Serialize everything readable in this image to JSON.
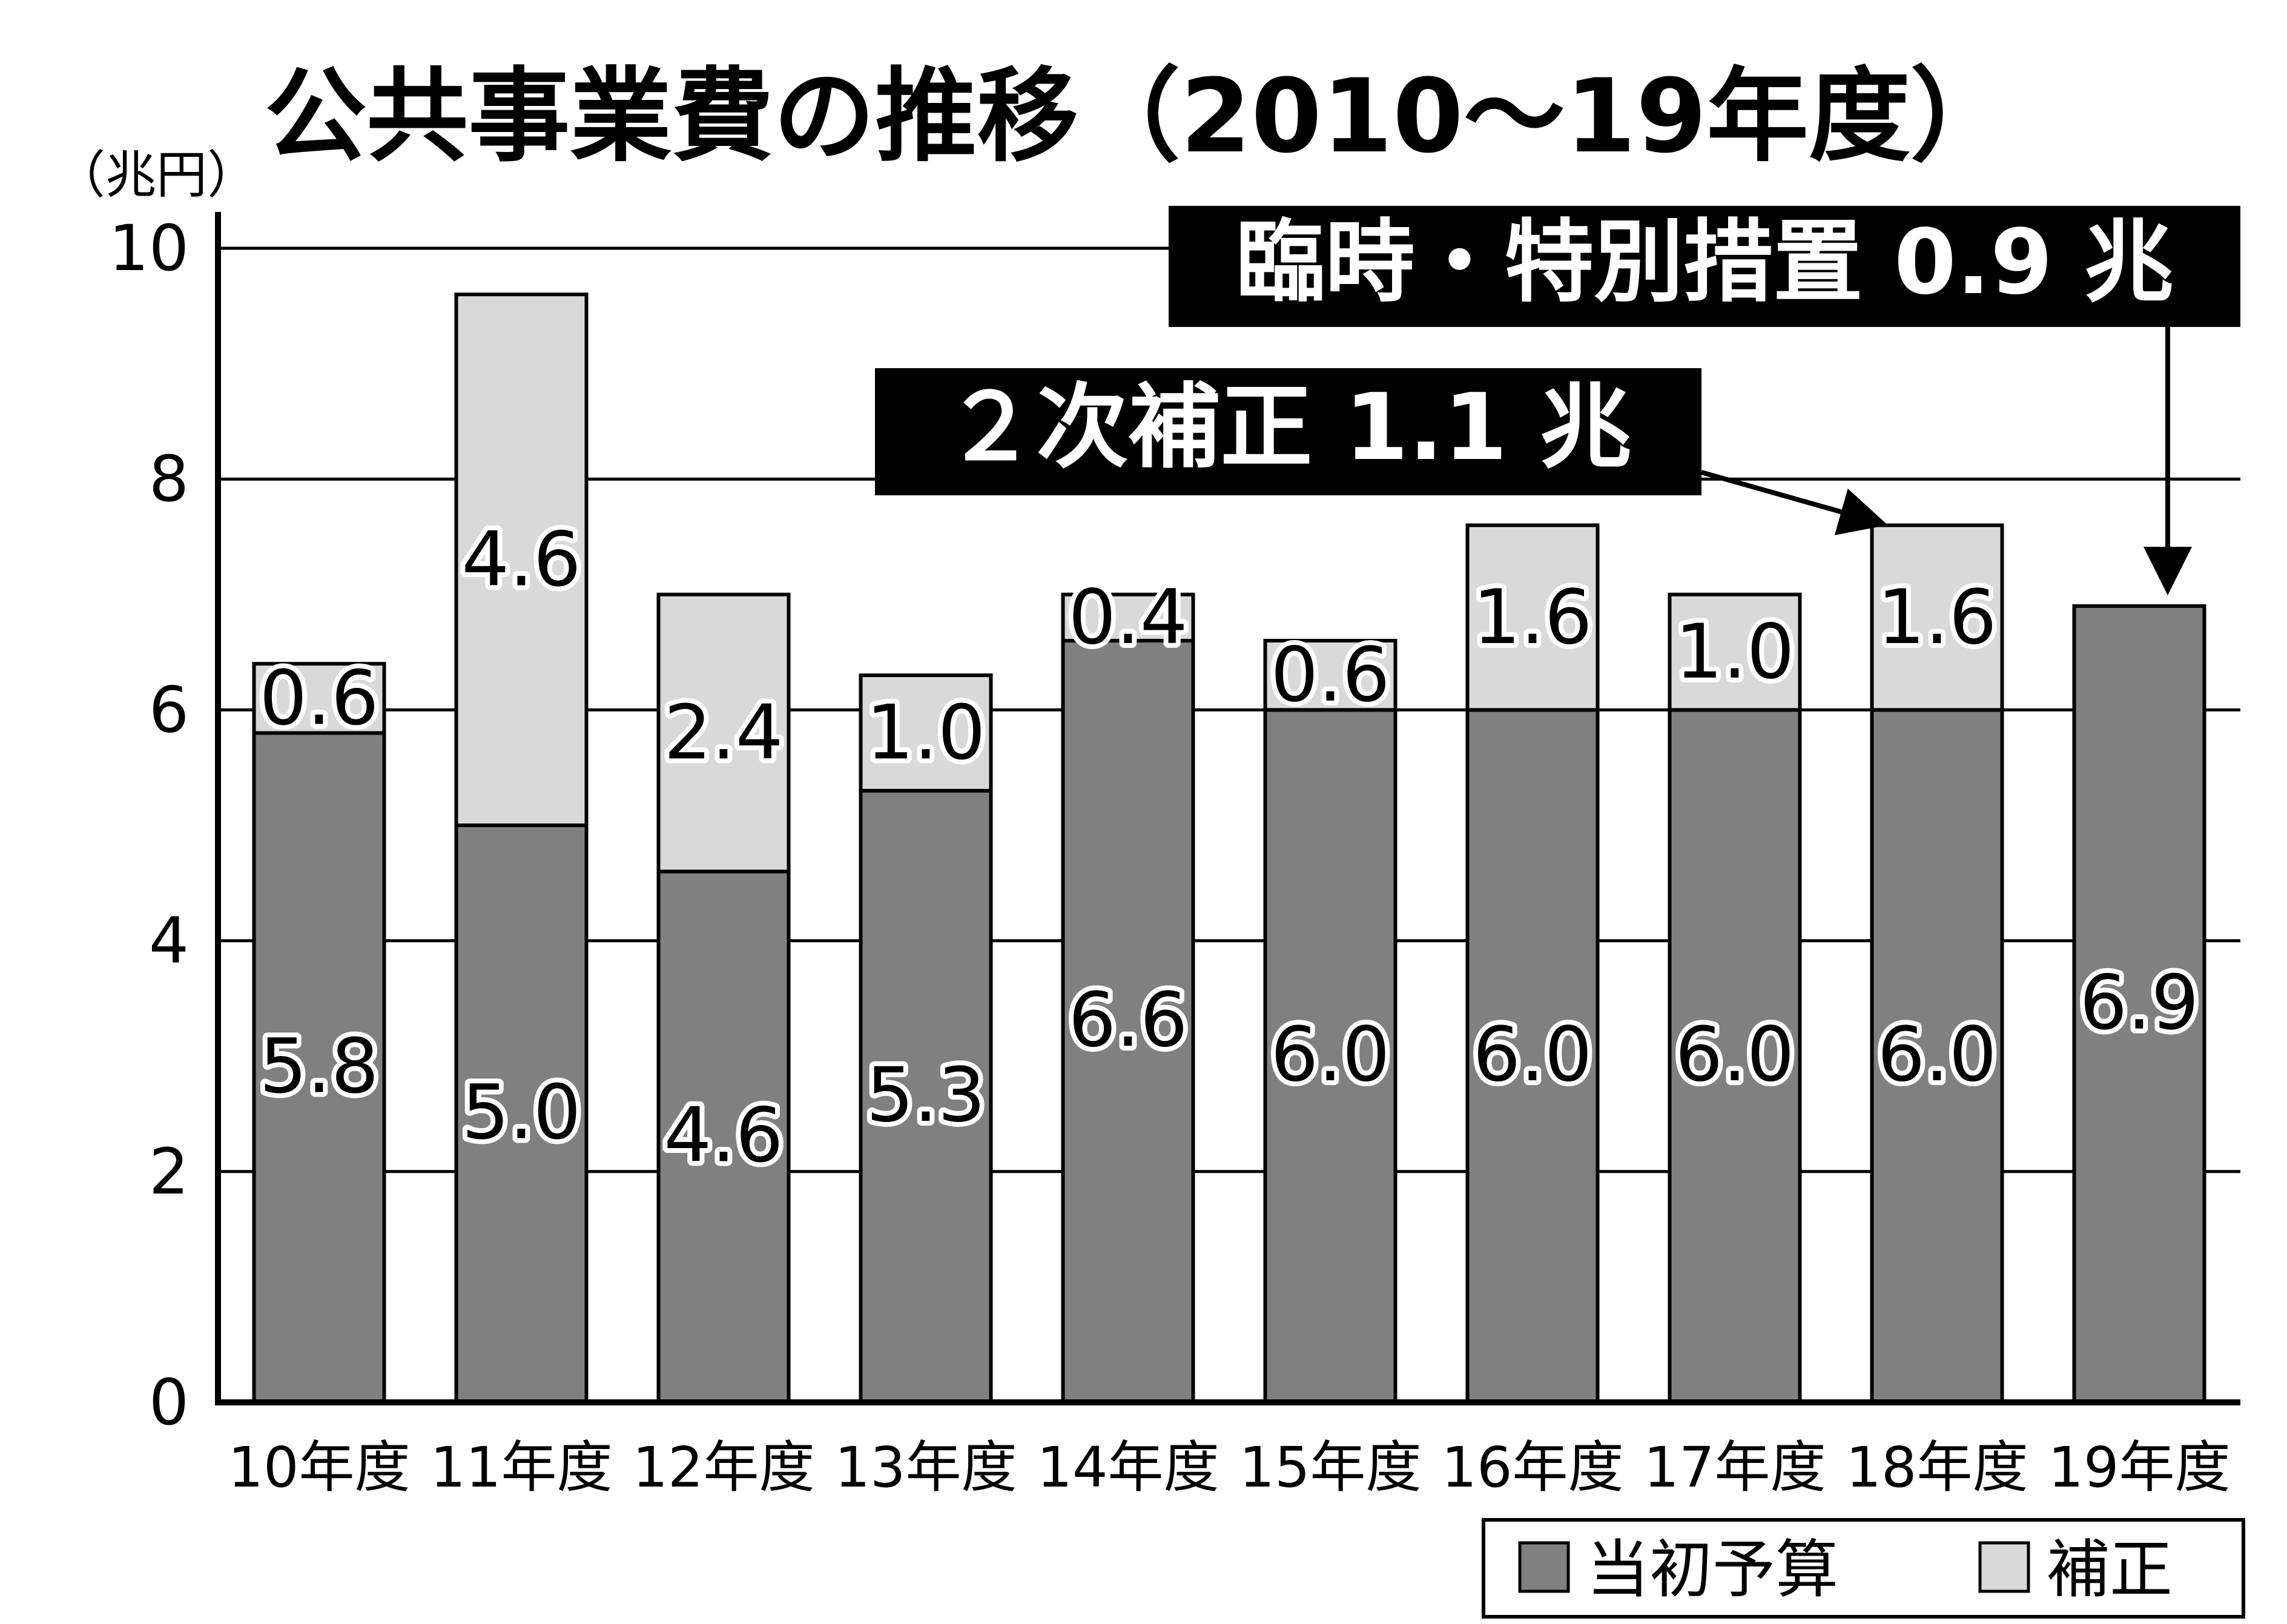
{
  "chart_data": {
    "type": "bar",
    "stacked": true,
    "title": "公共事業費の推移（2010〜19年度）",
    "ylabel": "（兆円）",
    "xlabel": "",
    "ylim": [
      0,
      10
    ],
    "yticks": [
      "0",
      "2",
      "4",
      "6",
      "8",
      "10"
    ],
    "grid": true,
    "categories": [
      "10年度",
      "11年度",
      "12年度",
      "13年度",
      "14年度",
      "15年度",
      "16年度",
      "17年度",
      "18年度",
      "19年度"
    ],
    "series": [
      {
        "name": "当初予算",
        "color": "#808080",
        "values": [
          5.8,
          5.0,
          4.6,
          5.3,
          6.6,
          6.0,
          6.0,
          6.0,
          6.0,
          6.9
        ],
        "labels": [
          "5.8",
          "5.0",
          "4.6",
          "5.3",
          "6.6",
          "6.0",
          "6.0",
          "6.0",
          "6.0",
          "6.9"
        ]
      },
      {
        "name": "補正",
        "color": "#d9d9d9",
        "values": [
          0.6,
          4.6,
          2.4,
          1.0,
          0.4,
          0.6,
          1.6,
          1.0,
          1.6,
          0
        ],
        "labels": [
          "0.6",
          "4.6",
          "2.4",
          "1.0",
          "0.4",
          "0.6",
          "1.6",
          "1.0",
          "1.6",
          ""
        ]
      }
    ],
    "legend": {
      "position": "bottom-right",
      "items": [
        "当初予算",
        "補正"
      ]
    },
    "annotations": [
      {
        "text": "臨時・特別措置 0.9 兆",
        "target_category": "19年度"
      },
      {
        "text": "２次補正 1.1 兆",
        "target_category": "18年度"
      }
    ]
  }
}
